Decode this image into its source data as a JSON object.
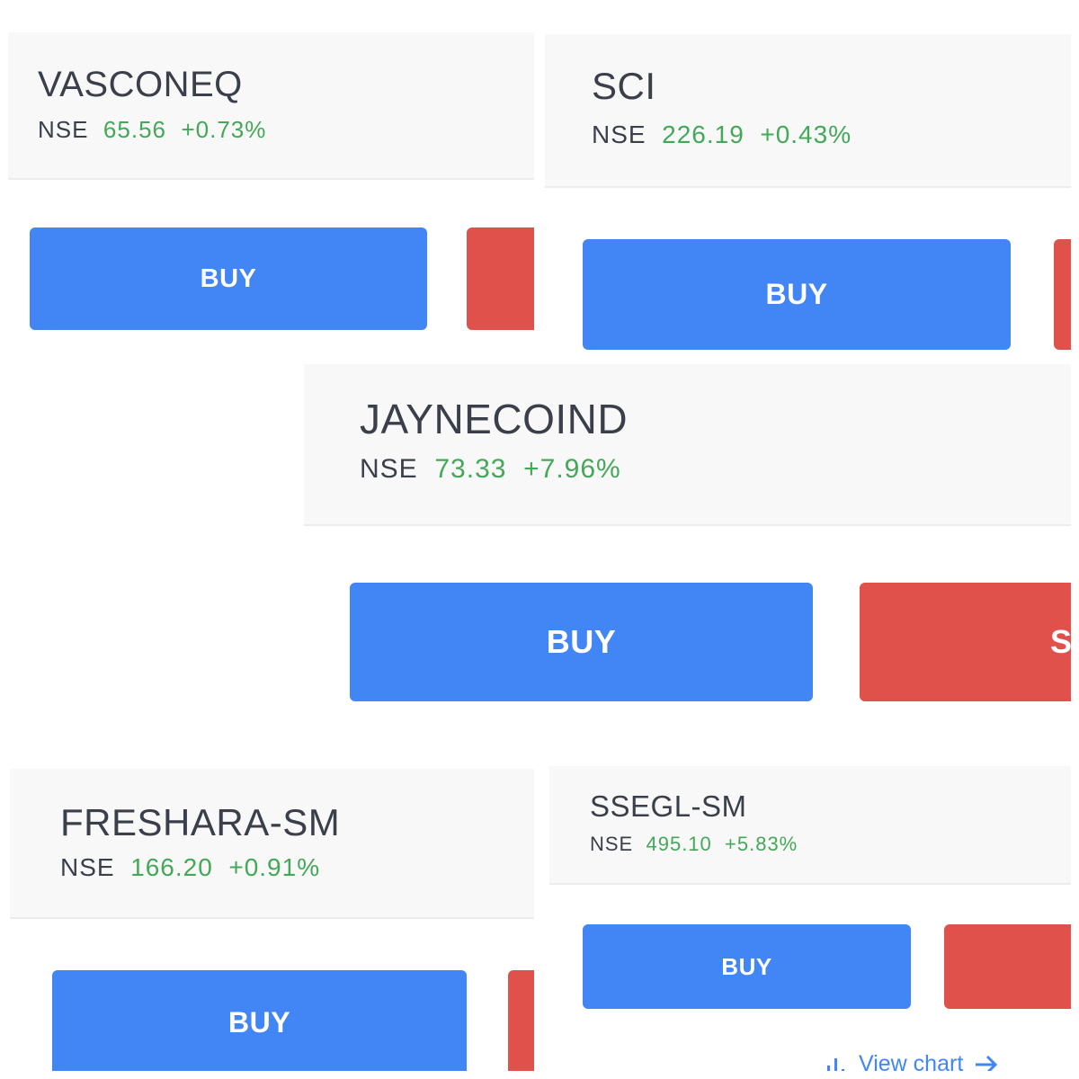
{
  "cards": [
    {
      "symbol": "VASCONEQ",
      "exchange": "NSE",
      "price": "65.56",
      "change": "+0.73%",
      "buy_label": "BUY"
    },
    {
      "symbol": "SCI",
      "exchange": "NSE",
      "price": "226.19",
      "change": "+0.43%",
      "buy_label": "BUY"
    },
    {
      "symbol": "JAYNECOIND",
      "exchange": "NSE",
      "price": "73.33",
      "change": "+7.96%",
      "buy_label": "BUY",
      "sell_label_partial": "S"
    },
    {
      "symbol": "FRESHARA-SM",
      "exchange": "NSE",
      "price": "166.20",
      "change": "+0.91%",
      "buy_label": "BUY"
    },
    {
      "symbol": "SSEGL-SM",
      "exchange": "NSE",
      "price": "495.10",
      "change": "+5.83%",
      "buy_label": "BUY",
      "view_chart_label": "View chart"
    }
  ],
  "icons": {
    "chart": "bar-chart-icon",
    "arrow": "arrow-right-icon"
  },
  "colors": {
    "buy": "#4285f4",
    "sell": "#e0514c",
    "positive": "#43a857",
    "text": "#3b3f4a",
    "header_bg": "#f8f8f9"
  }
}
